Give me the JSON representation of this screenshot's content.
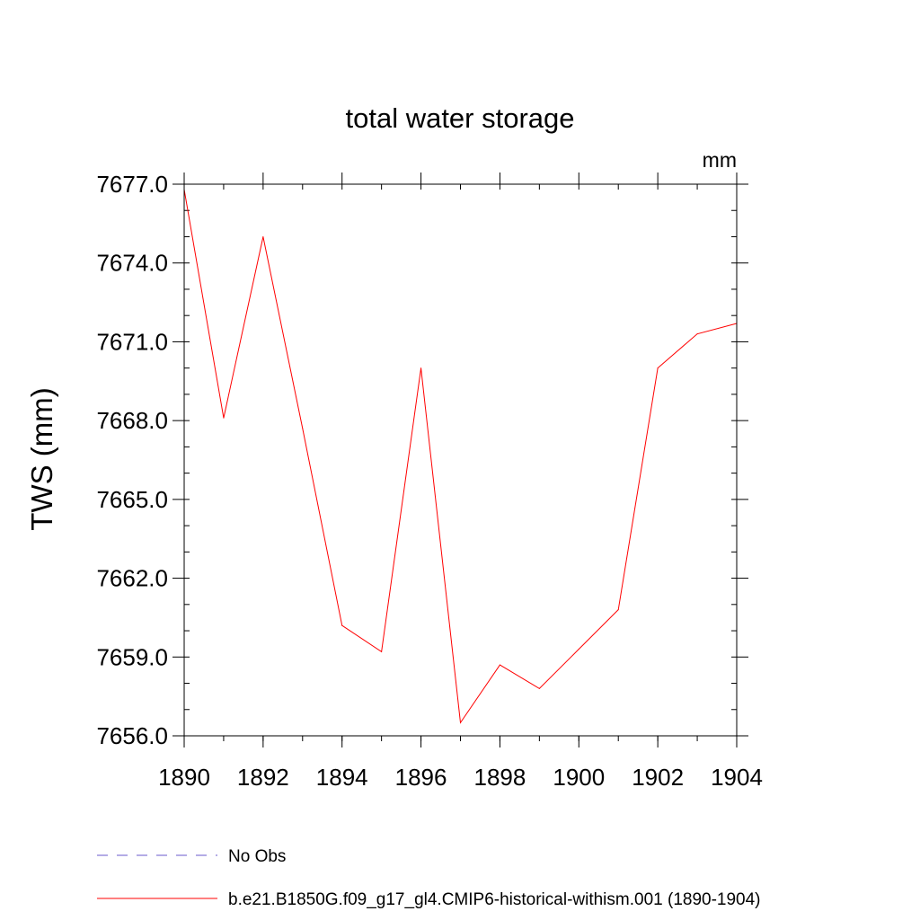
{
  "chart_data": {
    "type": "line",
    "title": "total water storage",
    "units_label": "mm",
    "xlabel": "",
    "ylabel": "TWS  (mm)",
    "xlim": [
      1890,
      1904
    ],
    "ylim": [
      7656.0,
      7677.0
    ],
    "x_ticks": [
      1890,
      1892,
      1894,
      1896,
      1898,
      1900,
      1902,
      1904
    ],
    "x_tick_labels": [
      "1890",
      "1892",
      "1894",
      "1896",
      "1898",
      "1900",
      "1902",
      "1904"
    ],
    "y_ticks": [
      7656.0,
      7659.0,
      7662.0,
      7665.0,
      7668.0,
      7671.0,
      7674.0,
      7677.0
    ],
    "y_tick_labels": [
      "7656.0",
      "7659.0",
      "7662.0",
      "7665.0",
      "7668.0",
      "7671.0",
      "7674.0",
      "7677.0"
    ],
    "y_minor_step": 1.0,
    "x_minor_step": 1,
    "grid": false,
    "legend_position": "bottom",
    "series": [
      {
        "name": "No Obs",
        "style": "dashed",
        "color": "#6a5acd",
        "x": [],
        "values": []
      },
      {
        "name": "b.e21.B1850G.f09_g17_gl4.CMIP6-historical-withism.001 (1890-1904)",
        "style": "solid",
        "color": "#ff0000",
        "x": [
          1890,
          1891,
          1892,
          1893,
          1894,
          1895,
          1896,
          1897,
          1898,
          1899,
          1900,
          1901,
          1902,
          1903,
          1904
        ],
        "values": [
          7676.8,
          7668.1,
          7675.0,
          7667.7,
          7660.2,
          7659.2,
          7670.0,
          7656.5,
          7658.7,
          7657.8,
          7659.3,
          7660.8,
          7670.0,
          7671.3,
          7671.7
        ]
      }
    ]
  }
}
